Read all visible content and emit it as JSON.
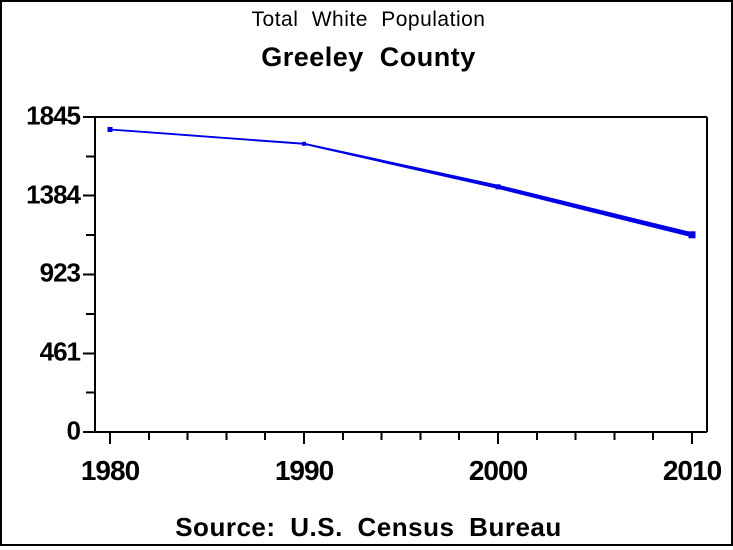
{
  "page": {
    "background_color": "#ffffff",
    "border_color": "#000000"
  },
  "chart_data": {
    "type": "line",
    "title": "Total White Population",
    "subtitle": "Greeley County",
    "footnote": "Source: U.S. Census Bureau",
    "x": [
      1980,
      1990,
      2000,
      2010
    ],
    "series": [
      {
        "name": "Total White Population",
        "values": [
          1772,
          1688,
          1436,
          1155
        ]
      }
    ],
    "xticks": [
      1980,
      1990,
      2000,
      2010
    ],
    "xtick_labels": [
      "1980",
      "1990",
      "2000",
      "2010"
    ],
    "x_minor_tick_step_years": 2,
    "yticks": [
      0,
      461,
      923,
      1384,
      1845
    ],
    "ytick_labels": [
      "0",
      "461",
      "923",
      "1384",
      "1845"
    ],
    "y_minor_ticks_at_midpoints": true,
    "ylim": [
      0,
      1845
    ],
    "xlim": [
      1979.2,
      2010.8
    ],
    "grid": false,
    "legend": "none",
    "marker": "square",
    "line_taper": "thin-at-left-thick-at-right",
    "colors": {
      "line": "#0000e6",
      "axis": "#000000",
      "text": "#000000"
    }
  }
}
